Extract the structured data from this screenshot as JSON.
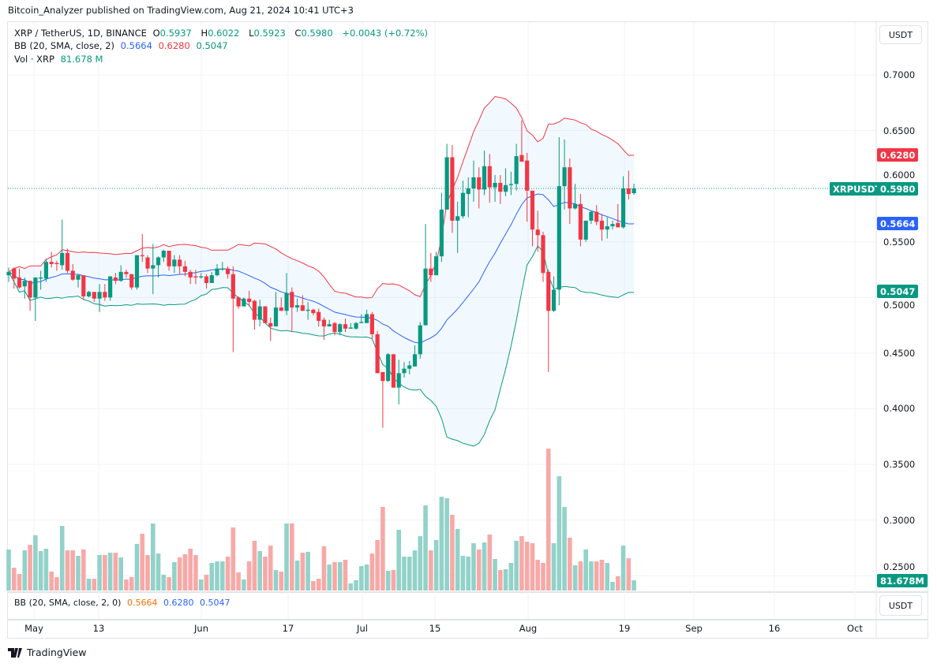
{
  "publisher_line": "Bitcoin_Analyzer published on TradingView.com, Aug 21, 2024 10:41 UTC+3",
  "legend": {
    "symbol": "XRP / TetherUS, 1D, BINANCE",
    "o_label": "O",
    "o": "0.5937",
    "h_label": "H",
    "h": "0.6022",
    "l_label": "L",
    "l": "0.5923",
    "c_label": "C",
    "c": "0.5980",
    "change": "+0.0043 (+0.72%)",
    "bb_label": "BB (20, SMA, close, 2)",
    "bb_basis": "0.5664",
    "bb_upper": "0.6280",
    "bb_lower": "0.5047",
    "vol_label": "Vol · XRP",
    "vol": "81.678 M"
  },
  "lower_pane": {
    "label": "BB (20, SMA, close, 2, 0)",
    "v1": "0.5664",
    "v2": "0.6280",
    "v3": "0.5047",
    "currency": "USDT"
  },
  "price_axis": {
    "currency": "USDT",
    "ticks": [
      "0.7000",
      "0.6500",
      "0.6000",
      "0.5500",
      "0.5000",
      "0.4500",
      "0.4000",
      "0.3500",
      "0.3000",
      "0.2500"
    ],
    "badges": {
      "upper": "0.6280",
      "symbol": "XRPUSDT",
      "last": "0.5980",
      "basis": "0.5664",
      "lower": "0.5047",
      "volume": "81.678M"
    }
  },
  "time_axis": [
    "May",
    "13",
    "Jun",
    "17",
    "Jul",
    "15",
    "Aug",
    "19",
    "Sep",
    "16",
    "Oct"
  ],
  "footer": "TradingView",
  "colors": {
    "up": "#089981",
    "down": "#f23645",
    "bb_upper": "#f23645",
    "bb_basis": "#2962ff",
    "bb_lower": "#089981",
    "accent": "#2962ff"
  },
  "chart_data": {
    "type": "candlestick",
    "symbol": "XRPUSDT",
    "interval": "1D",
    "ylim": [
      0.22,
      0.74
    ],
    "grid": true,
    "indicators": [
      "BB (20, SMA, close, 2)",
      "Volume"
    ],
    "columns": [
      "date",
      "open",
      "high",
      "low",
      "close",
      "volume_M"
    ],
    "candles": [
      [
        "2024-04-26",
        0.52,
        0.527,
        0.514,
        0.523,
        327
      ],
      [
        "2024-04-27",
        0.526,
        0.527,
        0.508,
        0.517,
        182
      ],
      [
        "2024-04-28",
        0.518,
        0.526,
        0.508,
        0.509,
        132
      ],
      [
        "2024-04-29",
        0.51,
        0.518,
        0.499,
        0.515,
        320
      ],
      [
        "2024-04-30",
        0.515,
        0.515,
        0.488,
        0.5,
        364
      ],
      [
        "2024-05-01",
        0.5,
        0.518,
        0.479,
        0.518,
        440
      ],
      [
        "2024-05-02",
        0.517,
        0.524,
        0.507,
        0.518,
        314
      ],
      [
        "2024-05-03",
        0.517,
        0.535,
        0.514,
        0.532,
        333
      ],
      [
        "2024-05-04",
        0.532,
        0.541,
        0.527,
        0.53,
        151
      ],
      [
        "2024-05-05",
        0.531,
        0.533,
        0.524,
        0.53,
        107
      ],
      [
        "2024-05-06",
        0.529,
        0.57,
        0.525,
        0.54,
        515
      ],
      [
        "2024-05-07",
        0.54,
        0.544,
        0.522,
        0.524,
        320
      ],
      [
        "2024-05-08",
        0.524,
        0.53,
        0.515,
        0.516,
        320
      ],
      [
        "2024-05-09",
        0.516,
        0.521,
        0.509,
        0.52,
        276
      ],
      [
        "2024-05-10",
        0.52,
        0.52,
        0.498,
        0.501,
        327
      ],
      [
        "2024-05-11",
        0.501,
        0.506,
        0.5,
        0.505,
        94
      ],
      [
        "2024-05-12",
        0.505,
        0.505,
        0.496,
        0.499,
        94
      ],
      [
        "2024-05-13",
        0.499,
        0.512,
        0.487,
        0.505,
        283
      ],
      [
        "2024-05-14",
        0.505,
        0.512,
        0.497,
        0.5,
        283
      ],
      [
        "2024-05-15",
        0.5,
        0.519,
        0.497,
        0.519,
        301
      ],
      [
        "2024-05-16",
        0.518,
        0.522,
        0.512,
        0.515,
        301
      ],
      [
        "2024-05-17",
        0.515,
        0.529,
        0.514,
        0.523,
        264
      ],
      [
        "2024-05-18",
        0.523,
        0.525,
        0.518,
        0.521,
        88
      ],
      [
        "2024-05-19",
        0.521,
        0.521,
        0.507,
        0.509,
        107
      ],
      [
        "2024-05-20",
        0.509,
        0.538,
        0.507,
        0.538,
        371
      ],
      [
        "2024-05-21",
        0.538,
        0.557,
        0.532,
        0.537,
        452
      ],
      [
        "2024-05-22",
        0.536,
        0.538,
        0.522,
        0.526,
        283
      ],
      [
        "2024-05-23",
        0.526,
        0.548,
        0.503,
        0.529,
        534
      ],
      [
        "2024-05-24",
        0.529,
        0.537,
        0.518,
        0.536,
        295
      ],
      [
        "2024-05-25",
        0.536,
        0.543,
        0.532,
        0.542,
        126
      ],
      [
        "2024-05-26",
        0.542,
        0.542,
        0.524,
        0.528,
        107
      ],
      [
        "2024-05-27",
        0.528,
        0.538,
        0.522,
        0.534,
        226
      ],
      [
        "2024-05-28",
        0.534,
        0.538,
        0.521,
        0.528,
        264
      ],
      [
        "2024-05-29",
        0.528,
        0.533,
        0.519,
        0.523,
        289
      ],
      [
        "2024-05-30",
        0.523,
        0.525,
        0.512,
        0.518,
        333
      ],
      [
        "2024-05-31",
        0.519,
        0.525,
        0.512,
        0.518,
        283
      ],
      [
        "2024-06-01",
        0.518,
        0.522,
        0.517,
        0.519,
        88
      ],
      [
        "2024-06-02",
        0.519,
        0.521,
        0.508,
        0.513,
        126
      ],
      [
        "2024-06-03",
        0.513,
        0.523,
        0.513,
        0.52,
        220
      ],
      [
        "2024-06-04",
        0.52,
        0.53,
        0.519,
        0.526,
        232
      ],
      [
        "2024-06-05",
        0.525,
        0.532,
        0.524,
        0.526,
        232
      ],
      [
        "2024-06-06",
        0.526,
        0.528,
        0.517,
        0.521,
        270
      ],
      [
        "2024-06-07",
        0.521,
        0.528,
        0.451,
        0.499,
        502
      ],
      [
        "2024-06-08",
        0.5,
        0.501,
        0.49,
        0.492,
        144
      ],
      [
        "2024-06-09",
        0.492,
        0.5,
        0.492,
        0.499,
        88
      ],
      [
        "2024-06-10",
        0.499,
        0.506,
        0.492,
        0.496,
        232
      ],
      [
        "2024-06-11",
        0.497,
        0.498,
        0.471,
        0.48,
        396
      ],
      [
        "2024-06-12",
        0.48,
        0.498,
        0.474,
        0.492,
        314
      ],
      [
        "2024-06-13",
        0.492,
        0.492,
        0.477,
        0.477,
        270
      ],
      [
        "2024-06-14",
        0.477,
        0.482,
        0.461,
        0.474,
        358
      ],
      [
        "2024-06-15",
        0.474,
        0.505,
        0.474,
        0.491,
        163
      ],
      [
        "2024-06-16",
        0.491,
        0.5,
        0.488,
        0.488,
        151
      ],
      [
        "2024-06-17",
        0.488,
        0.522,
        0.484,
        0.504,
        534
      ],
      [
        "2024-06-18",
        0.505,
        0.509,
        0.469,
        0.491,
        534
      ],
      [
        "2024-06-19",
        0.491,
        0.499,
        0.487,
        0.493,
        239
      ],
      [
        "2024-06-20",
        0.493,
        0.502,
        0.488,
        0.488,
        301
      ],
      [
        "2024-06-21",
        0.488,
        0.496,
        0.48,
        0.489,
        308
      ],
      [
        "2024-06-22",
        0.489,
        0.49,
        0.484,
        0.486,
        75
      ],
      [
        "2024-06-23",
        0.487,
        0.49,
        0.474,
        0.479,
        94
      ],
      [
        "2024-06-24",
        0.48,
        0.482,
        0.462,
        0.474,
        352
      ],
      [
        "2024-06-25",
        0.474,
        0.48,
        0.474,
        0.476,
        207
      ],
      [
        "2024-06-26",
        0.477,
        0.478,
        0.466,
        0.469,
        226
      ],
      [
        "2024-06-27",
        0.469,
        0.477,
        0.466,
        0.476,
        226
      ],
      [
        "2024-06-28",
        0.476,
        0.481,
        0.469,
        0.472,
        245
      ],
      [
        "2024-06-29",
        0.472,
        0.477,
        0.472,
        0.473,
        57
      ],
      [
        "2024-06-30",
        0.472,
        0.478,
        0.471,
        0.477,
        82
      ],
      [
        "2024-07-01",
        0.477,
        0.485,
        0.477,
        0.478,
        195
      ],
      [
        "2024-07-02",
        0.477,
        0.489,
        0.477,
        0.485,
        207
      ],
      [
        "2024-07-03",
        0.485,
        0.487,
        0.463,
        0.467,
        295
      ],
      [
        "2024-07-04",
        0.467,
        0.47,
        0.432,
        0.432,
        402
      ],
      [
        "2024-07-05",
        0.433,
        0.433,
        0.383,
        0.425,
        666
      ],
      [
        "2024-07-06",
        0.425,
        0.45,
        0.424,
        0.449,
        157
      ],
      [
        "2024-07-07",
        0.449,
        0.449,
        0.419,
        0.419,
        163
      ],
      [
        "2024-07-08",
        0.419,
        0.444,
        0.404,
        0.432,
        484
      ],
      [
        "2024-07-09",
        0.432,
        0.442,
        0.428,
        0.436,
        270
      ],
      [
        "2024-07-10",
        0.436,
        0.443,
        0.431,
        0.439,
        270
      ],
      [
        "2024-07-11",
        0.438,
        0.457,
        0.438,
        0.449,
        320
      ],
      [
        "2024-07-12",
        0.449,
        0.478,
        0.445,
        0.475,
        433
      ],
      [
        "2024-07-13",
        0.475,
        0.566,
        0.475,
        0.526,
        678
      ],
      [
        "2024-07-14",
        0.526,
        0.54,
        0.514,
        0.52,
        320
      ],
      [
        "2024-07-15",
        0.52,
        0.541,
        0.52,
        0.537,
        402
      ],
      [
        "2024-07-16",
        0.537,
        0.594,
        0.532,
        0.579,
        747
      ],
      [
        "2024-07-17",
        0.579,
        0.638,
        0.579,
        0.626,
        735
      ],
      [
        "2024-07-18",
        0.626,
        0.637,
        0.558,
        0.569,
        603
      ],
      [
        "2024-07-19",
        0.569,
        0.586,
        0.54,
        0.573,
        490
      ],
      [
        "2024-07-20",
        0.573,
        0.605,
        0.571,
        0.594,
        276
      ],
      [
        "2024-07-21",
        0.593,
        0.608,
        0.572,
        0.598,
        270
      ],
      [
        "2024-07-22",
        0.598,
        0.623,
        0.586,
        0.608,
        377
      ],
      [
        "2024-07-23",
        0.608,
        0.617,
        0.58,
        0.597,
        327
      ],
      [
        "2024-07-24",
        0.597,
        0.632,
        0.592,
        0.618,
        383
      ],
      [
        "2024-07-25",
        0.618,
        0.629,
        0.585,
        0.599,
        446
      ],
      [
        "2024-07-26",
        0.599,
        0.61,
        0.586,
        0.603,
        251
      ],
      [
        "2024-07-27",
        0.603,
        0.61,
        0.584,
        0.595,
        163
      ],
      [
        "2024-07-28",
        0.595,
        0.616,
        0.591,
        0.601,
        170
      ],
      [
        "2024-07-29",
        0.601,
        0.613,
        0.592,
        0.602,
        220
      ],
      [
        "2024-07-30",
        0.602,
        0.638,
        0.596,
        0.627,
        396
      ],
      [
        "2024-07-31",
        0.628,
        0.659,
        0.622,
        0.622,
        433
      ],
      [
        "2024-08-01",
        0.623,
        0.63,
        0.568,
        0.596,
        389
      ],
      [
        "2024-08-02",
        0.596,
        0.596,
        0.546,
        0.561,
        377
      ],
      [
        "2024-08-03",
        0.561,
        0.578,
        0.541,
        0.556,
        245
      ],
      [
        "2024-08-04",
        0.556,
        0.559,
        0.514,
        0.522,
        220
      ],
      [
        "2024-08-05",
        0.523,
        0.525,
        0.433,
        0.488,
        1130
      ],
      [
        "2024-08-06",
        0.488,
        0.519,
        0.487,
        0.507,
        377
      ],
      [
        "2024-08-07",
        0.507,
        0.644,
        0.493,
        0.6,
        911
      ],
      [
        "2024-08-08",
        0.6,
        0.642,
        0.579,
        0.617,
        666
      ],
      [
        "2024-08-09",
        0.617,
        0.625,
        0.566,
        0.58,
        421
      ],
      [
        "2024-08-10",
        0.58,
        0.602,
        0.579,
        0.584,
        201
      ],
      [
        "2024-08-11",
        0.584,
        0.593,
        0.546,
        0.552,
        232
      ],
      [
        "2024-08-12",
        0.552,
        0.569,
        0.55,
        0.569,
        327
      ],
      [
        "2024-08-13",
        0.569,
        0.578,
        0.566,
        0.577,
        232
      ],
      [
        "2024-08-14",
        0.577,
        0.583,
        0.565,
        0.568,
        232
      ],
      [
        "2024-08-15",
        0.569,
        0.575,
        0.551,
        0.561,
        245
      ],
      [
        "2024-08-16",
        0.561,
        0.572,
        0.553,
        0.564,
        220
      ],
      [
        "2024-08-17",
        0.564,
        0.569,
        0.561,
        0.566,
        69
      ],
      [
        "2024-08-18",
        0.567,
        0.584,
        0.563,
        0.563,
        113
      ],
      [
        "2024-08-19",
        0.563,
        0.609,
        0.562,
        0.598,
        358
      ],
      [
        "2024-08-20",
        0.598,
        0.614,
        0.588,
        0.593,
        257
      ],
      [
        "2024-08-21",
        0.5937,
        0.6022,
        0.5923,
        0.598,
        81.678
      ]
    ]
  }
}
